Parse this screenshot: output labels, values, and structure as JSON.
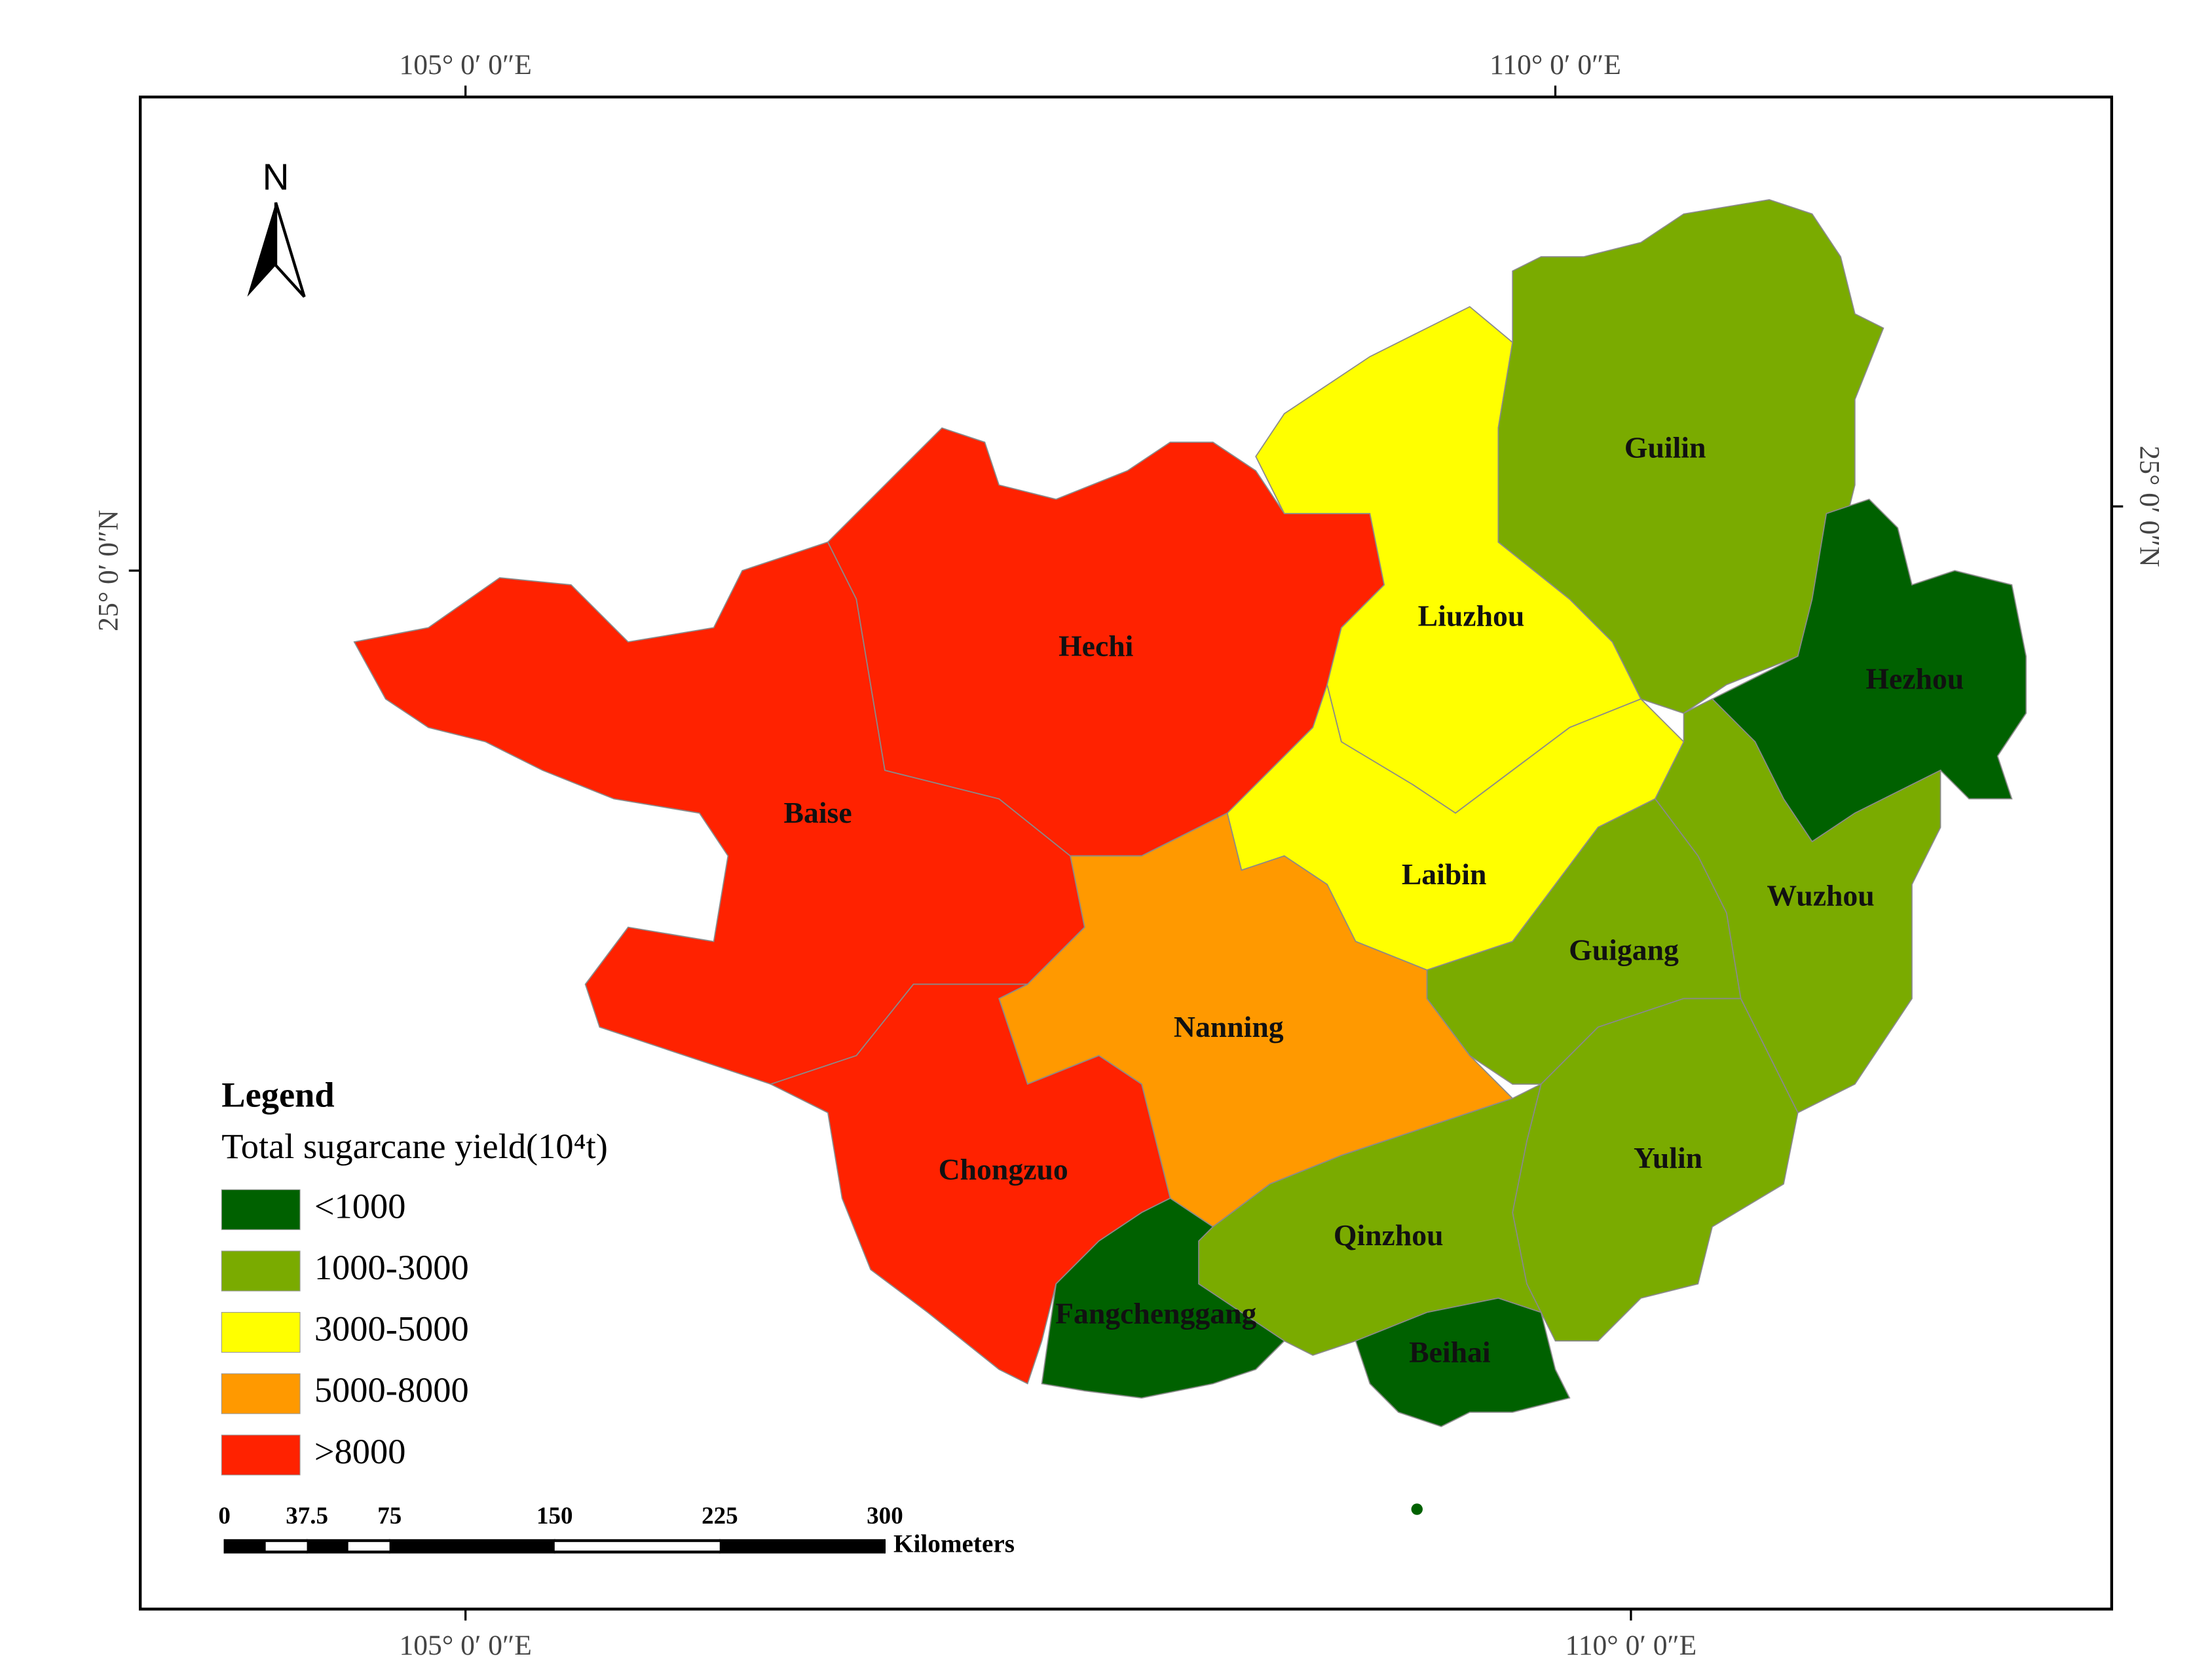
{
  "map": {
    "north": "N",
    "coordinates": {
      "top": [
        "105° 0′ 0″E",
        "110° 0′ 0″E"
      ],
      "bottom": [
        "105° 0′ 0″E",
        "110° 0′ 0″E"
      ],
      "left": "25° 0′ 0″N",
      "right": "25° 0′ 0″N"
    },
    "legend": {
      "title": "Legend",
      "subtitle": "Total sugarcane yield(10⁴t)",
      "classes": [
        {
          "label": "<1000",
          "color": "#006100"
        },
        {
          "label": "1000-3000",
          "color": "#7aab00"
        },
        {
          "label": "3000-5000",
          "color": "#ffff00"
        },
        {
          "label": "5000-8000",
          "color": "#ff9900"
        },
        {
          "label": ">8000",
          "color": "#ff2200"
        }
      ]
    },
    "regions": [
      {
        "name": "Baise",
        "color": "#ff2200"
      },
      {
        "name": "Hechi",
        "color": "#ff2200"
      },
      {
        "name": "Liuzhou",
        "color": "#ffff00"
      },
      {
        "name": "Laibin",
        "color": "#ffff00"
      },
      {
        "name": "Guilin",
        "color": "#7aab00"
      },
      {
        "name": "Hezhou",
        "color": "#006100"
      },
      {
        "name": "Wuzhou",
        "color": "#7aab00"
      },
      {
        "name": "Guigang",
        "color": "#7aab00"
      },
      {
        "name": "Yulin",
        "color": "#7aab00"
      },
      {
        "name": "Nanning",
        "color": "#ff9900"
      },
      {
        "name": "Chongzuo",
        "color": "#ff2200"
      },
      {
        "name": "Qinzhou",
        "color": "#7aab00"
      },
      {
        "name": "Fangchenggang",
        "color": "#006100"
      },
      {
        "name": "Beihai",
        "color": "#006100"
      }
    ],
    "scale": {
      "ticks": [
        0,
        37.5,
        75,
        150,
        225,
        300
      ],
      "unit": "Kilometers"
    }
  }
}
